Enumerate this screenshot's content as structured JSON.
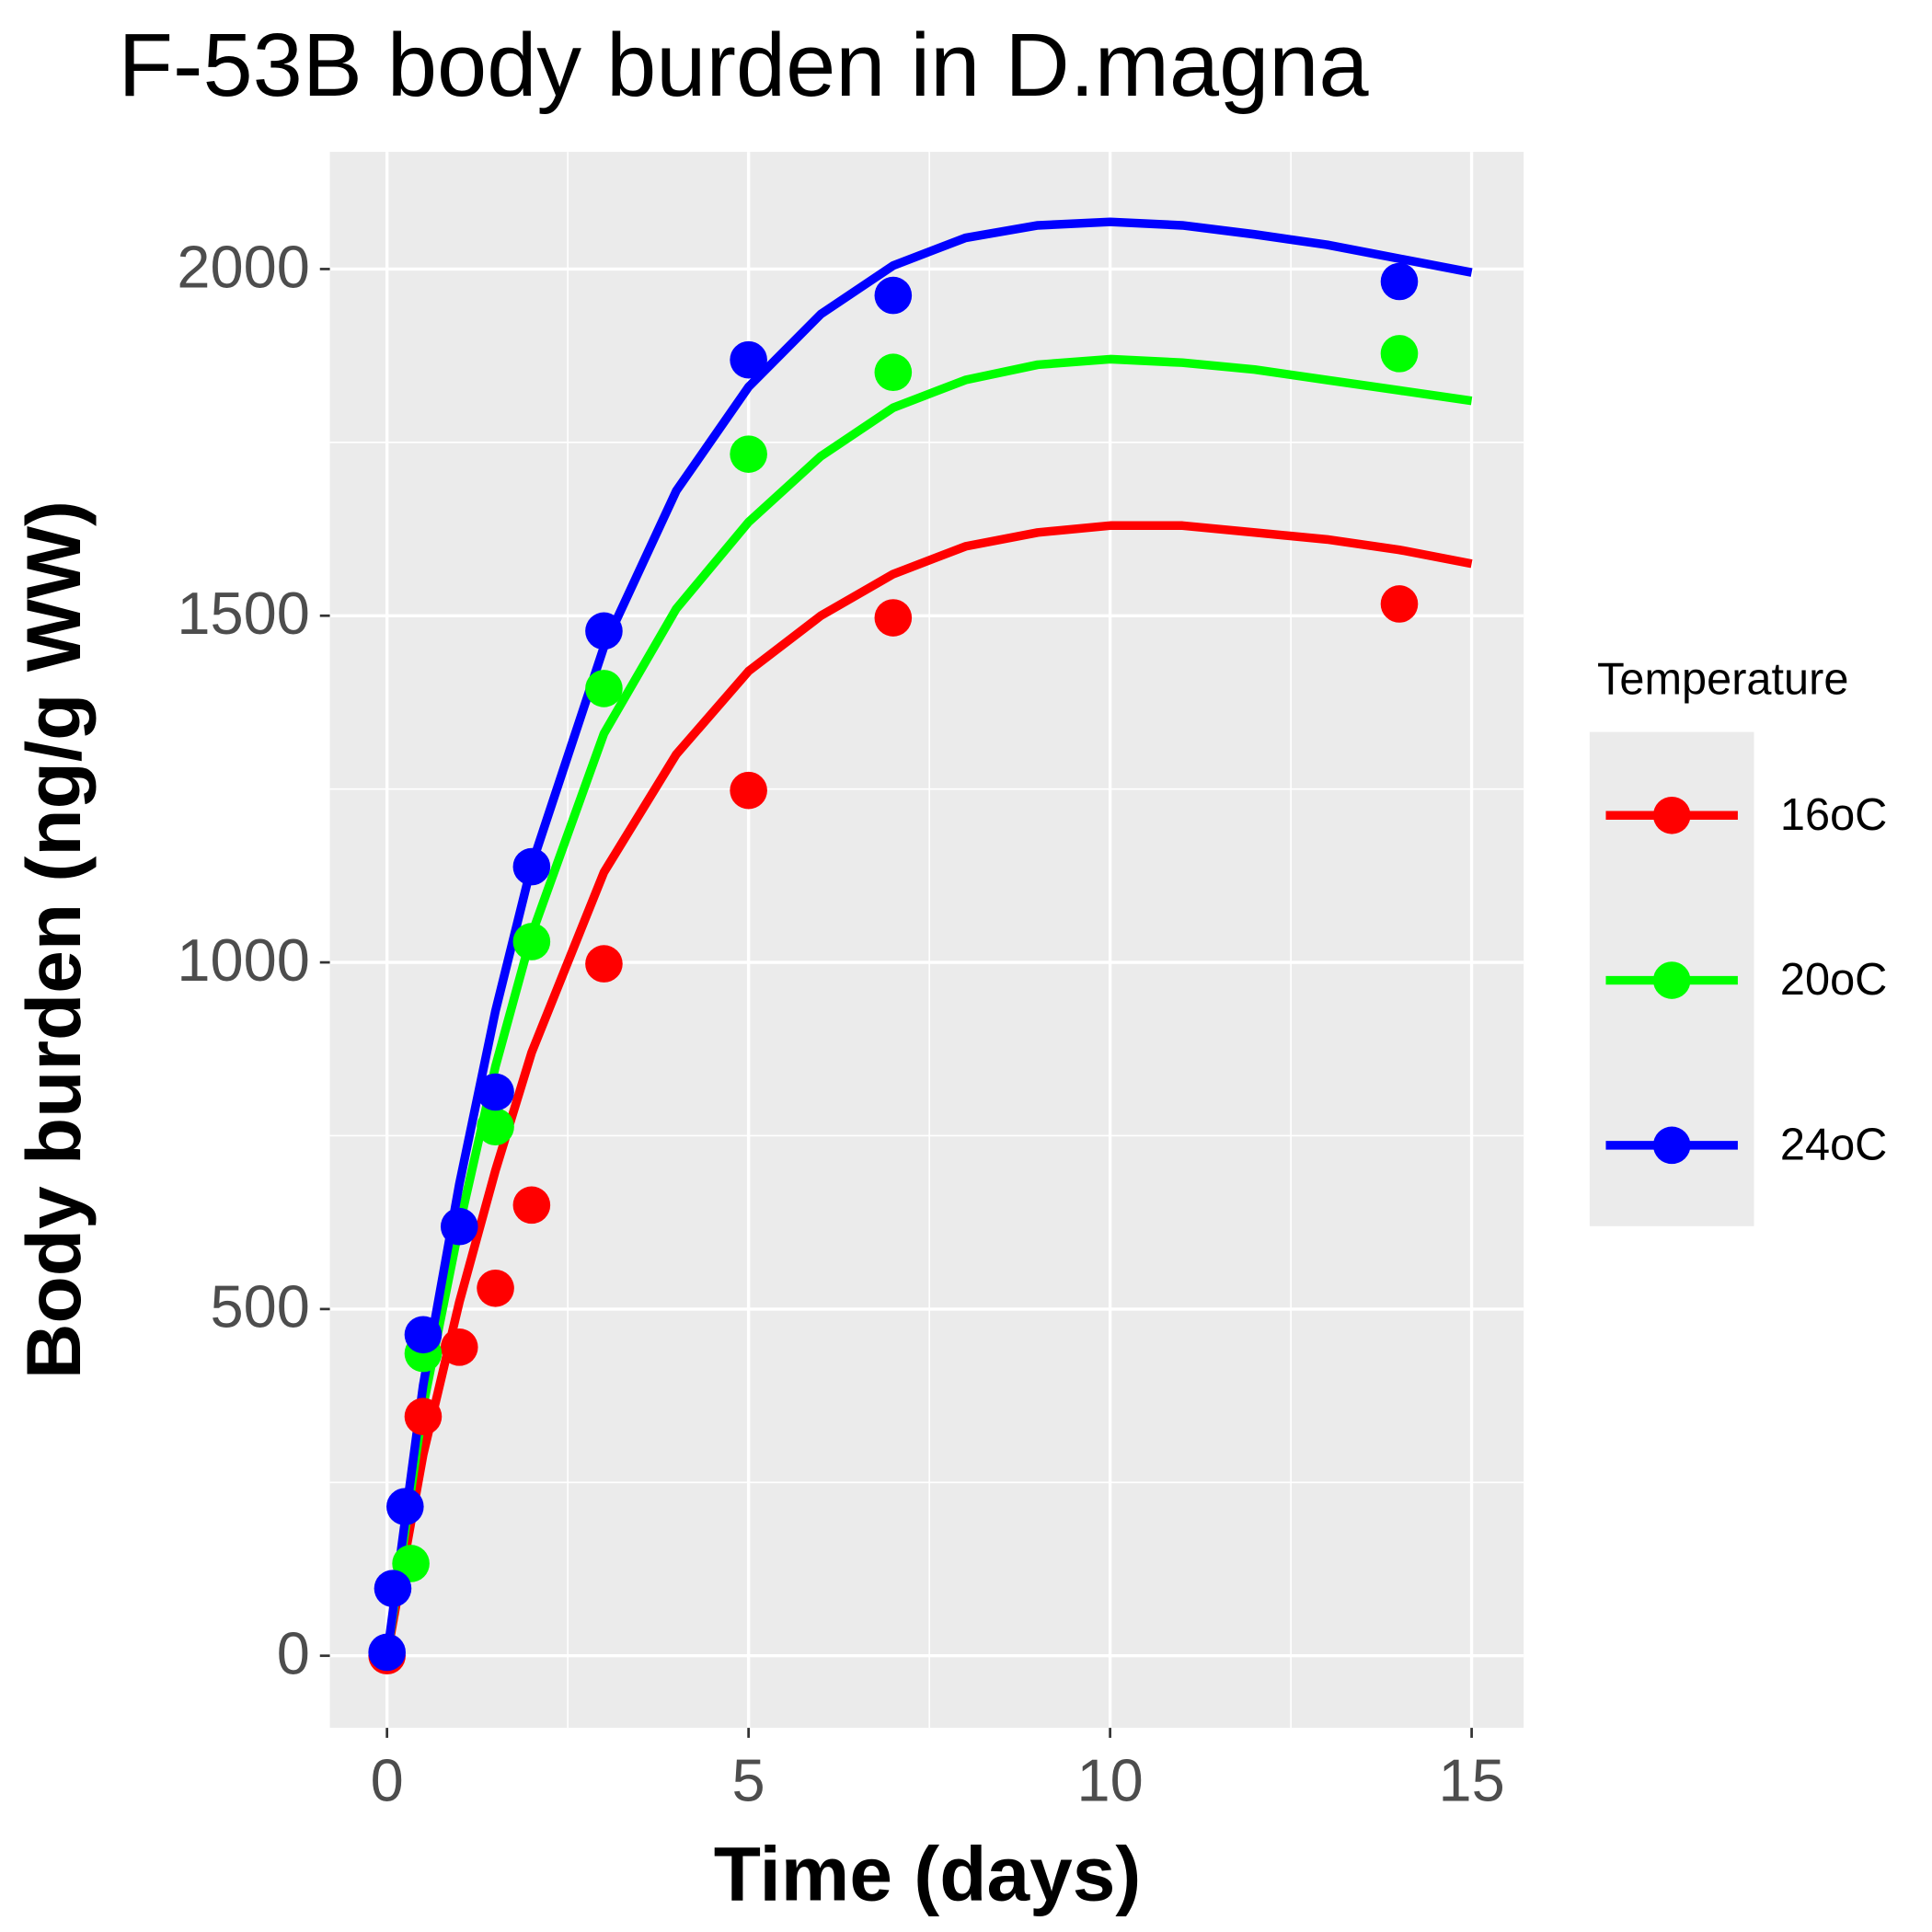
{
  "chart_data": {
    "type": "line",
    "title": "F-53B body burden in D.magna",
    "x_label": "Time (days)",
    "y_label": "Body burden (ng/g WW)",
    "legend_title": "Temperature",
    "legend_position": "right",
    "grid": true,
    "xlim": [
      -0.79,
      15.72
    ],
    "ylim": [
      -104,
      2169
    ],
    "xticks": [
      0,
      5,
      10,
      15
    ],
    "yticks": [
      0,
      500,
      1000,
      1500,
      2000
    ],
    "fit_x": [
      0,
      0.5,
      1,
      1.5,
      2,
      3,
      4,
      5,
      6,
      7,
      8,
      9,
      10,
      11,
      12,
      13,
      14,
      15
    ],
    "series": [
      {
        "name": "16oC",
        "color": "#ff0000",
        "x": [
          0,
          0.5,
          1,
          1.5,
          2,
          3,
          5,
          7,
          14
        ],
        "values": [
          0,
          345,
          445,
          530,
          650,
          998,
          1248,
          1497,
          1517
        ],
        "fit_values": [
          0,
          290,
          510,
          700,
          870,
          1130,
          1300,
          1420,
          1500,
          1560,
          1600,
          1620,
          1630,
          1630,
          1620,
          1610,
          1595,
          1575
        ]
      },
      {
        "name": "20oC",
        "color": "#00ff00",
        "x": [
          0.33,
          0.5,
          1.5,
          2,
          3,
          5,
          7,
          14
        ],
        "values": [
          133,
          436,
          763,
          1030,
          1395,
          1733,
          1851,
          1878
        ],
        "fit_values": [
          0,
          360,
          620,
          850,
          1040,
          1330,
          1510,
          1635,
          1730,
          1800,
          1840,
          1862,
          1870,
          1865,
          1855,
          1840,
          1825,
          1810
        ]
      },
      {
        "name": "24oC",
        "color": "#0000ff",
        "x": [
          0,
          0.08,
          0.25,
          0.5,
          1,
          1.5,
          2,
          3,
          5,
          7,
          14
        ],
        "values": [
          5,
          97,
          215,
          463,
          619,
          813,
          1138,
          1478,
          1869,
          1962,
          1982
        ],
        "fit_values": [
          0,
          390,
          680,
          930,
          1140,
          1455,
          1680,
          1830,
          1935,
          2005,
          2045,
          2063,
          2068,
          2063,
          2050,
          2035,
          2015,
          1995
        ]
      }
    ]
  }
}
